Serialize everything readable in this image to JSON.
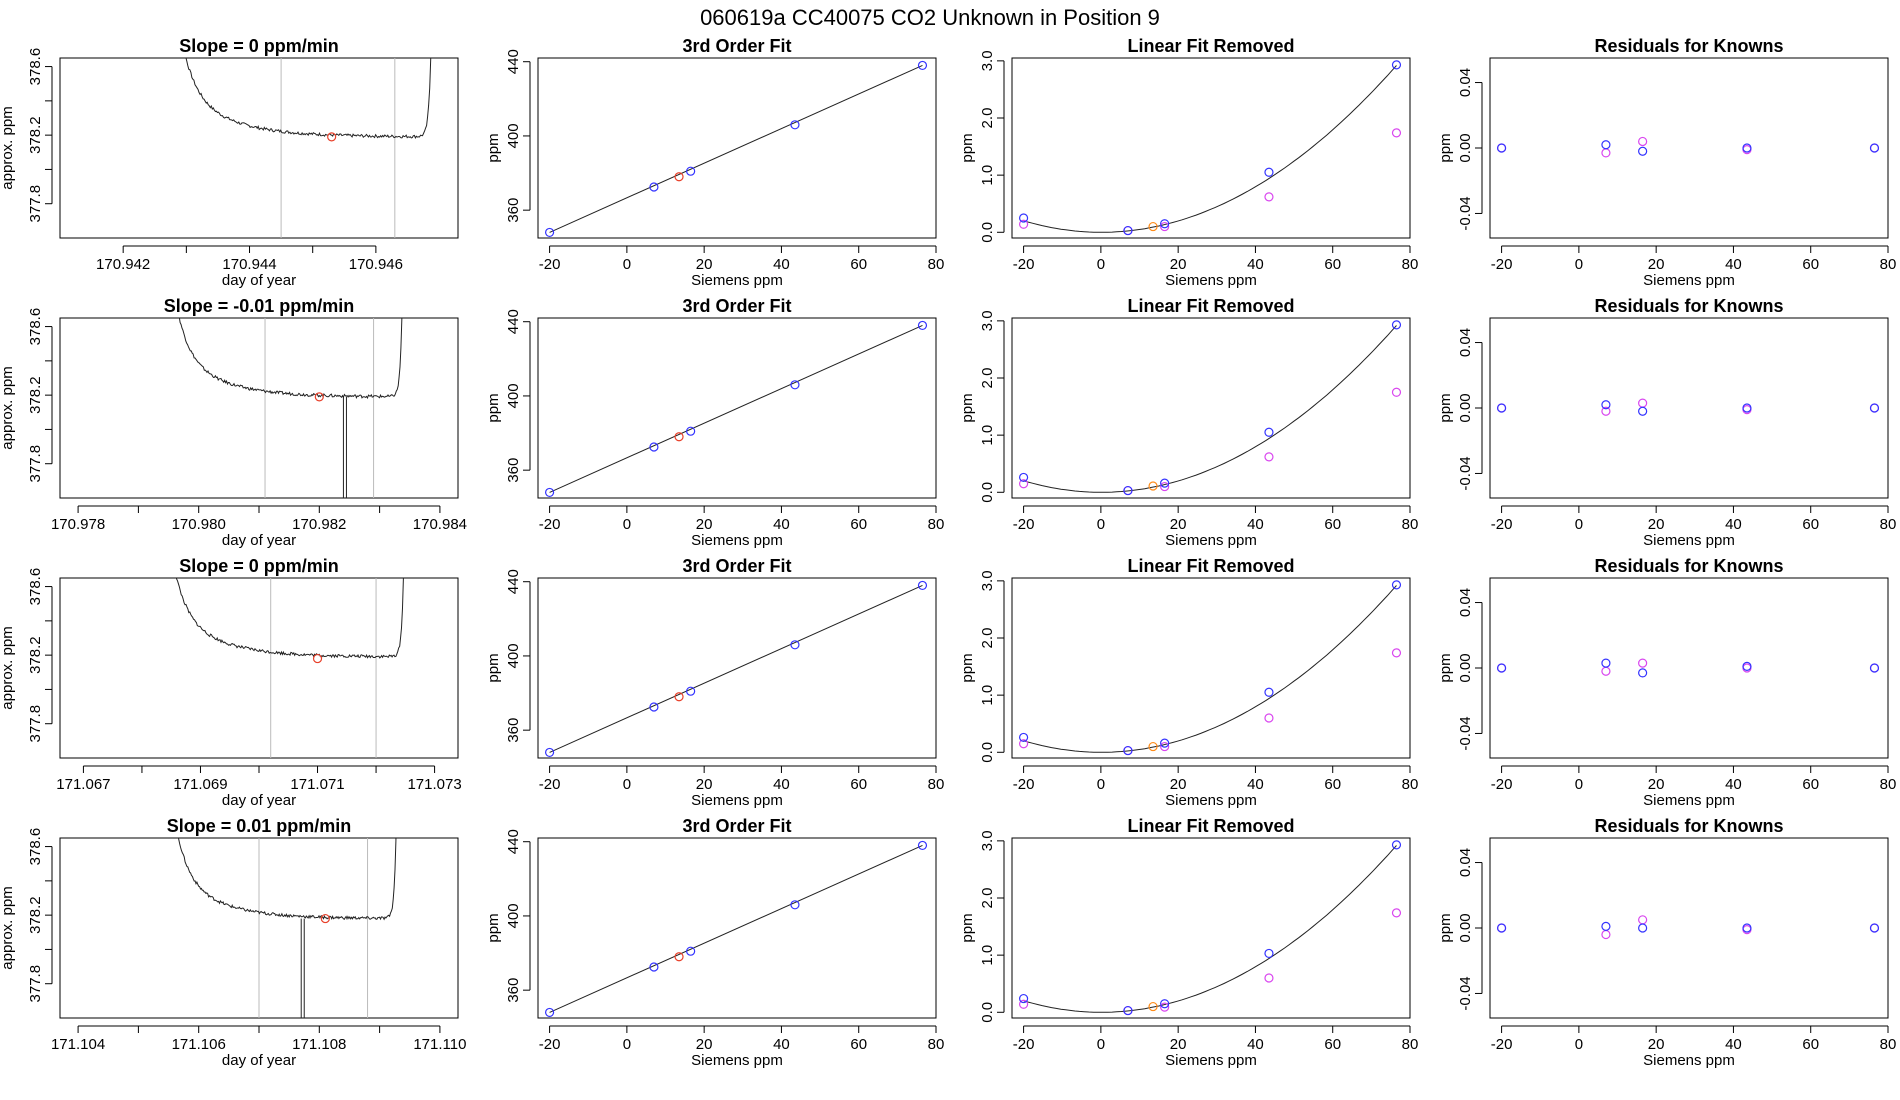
{
  "page_title": "060619a      CC40075    CO2 Unknown in Position  9",
  "colors": {
    "blue_points": "#3333ff",
    "magenta_points": "#d946ef",
    "red_points": "#e8402a",
    "orange_points": "#ff8c1a",
    "trace": "#222222",
    "vlines": "#bbbbbb"
  },
  "chart_data": [
    {
      "type": "line",
      "row": 0,
      "col": 0,
      "title": "Slope =  0  ppm/min",
      "xlabel": "day of year",
      "ylabel": "approx. ppm",
      "xlim": [
        170.941,
        170.9473
      ],
      "ylim": [
        377.6,
        378.65
      ],
      "xticks": [
        "170.942",
        "170.944",
        "170.946"
      ],
      "xtick_values": [
        170.942,
        170.944,
        170.946
      ],
      "yticks": [
        "377.8",
        "378.2",
        "378.6"
      ],
      "ytick_values": [
        377.8,
        378.2,
        378.6
      ],
      "vlines": [
        170.9445,
        170.9463
      ],
      "flat_level": 378.19,
      "rise_left": 170.9427,
      "rise_right": 170.9469,
      "drop_x": [],
      "marker": {
        "x": 170.9453,
        "y": 378.19
      }
    },
    {
      "type": "line",
      "row": 1,
      "col": 0,
      "title": "Slope =  -0.01  ppm/min",
      "xlabel": "day of year",
      "ylabel": "approx. ppm",
      "xlim": [
        170.9777,
        170.9843
      ],
      "ylim": [
        377.6,
        378.65
      ],
      "xticks": [
        "170.978",
        "170.980",
        "170.982",
        "170.984"
      ],
      "xtick_values": [
        170.978,
        170.98,
        170.982,
        170.984
      ],
      "yticks": [
        "377.8",
        "378.2",
        "378.6"
      ],
      "ytick_values": [
        377.8,
        378.2,
        378.6
      ],
      "vlines": [
        170.9811,
        170.9829
      ],
      "flat_level": 378.19,
      "rise_left": 170.9794,
      "rise_right": 170.9834,
      "drop_x": [
        170.9824,
        170.98245
      ],
      "marker": {
        "x": 170.982,
        "y": 378.19
      }
    },
    {
      "type": "line",
      "row": 2,
      "col": 0,
      "title": "Slope =  0  ppm/min",
      "xlabel": "day of year",
      "ylabel": "approx. ppm",
      "xlim": [
        171.0666,
        171.0734
      ],
      "ylim": [
        377.6,
        378.65
      ],
      "xticks": [
        "171.067",
        "171.069",
        "171.071",
        "171.073"
      ],
      "xtick_values": [
        171.067,
        171.069,
        171.071,
        171.073
      ],
      "yticks": [
        "377.8",
        "378.2",
        "378.6"
      ],
      "ytick_values": [
        377.8,
        378.2,
        378.6
      ],
      "vlines": [
        171.0702,
        171.072
      ],
      "flat_level": 378.19,
      "rise_left": 171.0683,
      "rise_right": 171.0725,
      "drop_x": [],
      "marker": {
        "x": 171.071,
        "y": 378.18
      }
    },
    {
      "type": "line",
      "row": 3,
      "col": 0,
      "title": "Slope =  0.01  ppm/min",
      "xlabel": "day of year",
      "ylabel": "approx. ppm",
      "xlim": [
        171.1037,
        171.1103
      ],
      "ylim": [
        377.6,
        378.65
      ],
      "xticks": [
        "171.104",
        "171.106",
        "171.108",
        "171.110"
      ],
      "xtick_values": [
        171.104,
        171.106,
        171.108,
        171.11
      ],
      "yticks": [
        "377.8",
        "378.2",
        "378.6"
      ],
      "ytick_values": [
        377.8,
        378.2,
        378.6
      ],
      "vlines": [
        171.107,
        171.1088
      ],
      "flat_level": 378.18,
      "rise_left": 171.1054,
      "rise_right": 171.1093,
      "drop_x": [
        171.1077,
        171.10775
      ],
      "marker": {
        "x": 171.1081,
        "y": 378.18
      }
    },
    {
      "type": "scatter",
      "row": 0,
      "col": 1,
      "title": "3rd Order Fit",
      "xlabel": "Siemens ppm",
      "ylabel": "ppm",
      "xlim": [
        -23,
        80
      ],
      "ylim": [
        345,
        442
      ],
      "xticks": [
        "-20",
        "0",
        "20",
        "40",
        "60",
        "80"
      ],
      "xtick_values": [
        -20,
        0,
        20,
        40,
        60,
        80
      ],
      "yticks": [
        "360",
        "400",
        "440"
      ],
      "ytick_values": [
        360,
        400,
        440
      ],
      "line": {
        "x": [
          -20,
          76.5
        ],
        "y": [
          348,
          438
        ]
      },
      "blue_points": {
        "x": [
          -20,
          7,
          16.5,
          43.5,
          76.5
        ],
        "y": [
          348,
          372.5,
          381,
          406,
          438
        ]
      },
      "red_points": {
        "x": [
          13.5
        ],
        "y": [
          378
        ]
      }
    },
    {
      "type": "scatter",
      "row": 1,
      "col": 1,
      "title": "3rd Order Fit",
      "xlabel": "Siemens ppm",
      "ylabel": "ppm",
      "xlim": [
        -23,
        80
      ],
      "ylim": [
        345,
        442
      ],
      "xticks": [
        "-20",
        "0",
        "20",
        "40",
        "60",
        "80"
      ],
      "xtick_values": [
        -20,
        0,
        20,
        40,
        60,
        80
      ],
      "yticks": [
        "360",
        "400",
        "440"
      ],
      "ytick_values": [
        360,
        400,
        440
      ],
      "line": {
        "x": [
          -20,
          76.5
        ],
        "y": [
          348,
          438
        ]
      },
      "blue_points": {
        "x": [
          -20,
          7,
          16.5,
          43.5,
          76.5
        ],
        "y": [
          348,
          372.5,
          381,
          406,
          438
        ]
      },
      "red_points": {
        "x": [
          13.5
        ],
        "y": [
          378
        ]
      }
    },
    {
      "type": "scatter",
      "row": 2,
      "col": 1,
      "title": "3rd Order Fit",
      "xlabel": "Siemens ppm",
      "ylabel": "ppm",
      "xlim": [
        -23,
        80
      ],
      "ylim": [
        345,
        442
      ],
      "xticks": [
        "-20",
        "0",
        "20",
        "40",
        "60",
        "80"
      ],
      "xtick_values": [
        -20,
        0,
        20,
        40,
        60,
        80
      ],
      "yticks": [
        "360",
        "400",
        "440"
      ],
      "ytick_values": [
        360,
        400,
        440
      ],
      "line": {
        "x": [
          -20,
          76.5
        ],
        "y": [
          348,
          438
        ]
      },
      "blue_points": {
        "x": [
          -20,
          7,
          16.5,
          43.5,
          76.5
        ],
        "y": [
          348,
          372.5,
          381,
          406,
          438
        ]
      },
      "red_points": {
        "x": [
          13.5
        ],
        "y": [
          378
        ]
      }
    },
    {
      "type": "scatter",
      "row": 3,
      "col": 1,
      "title": "3rd Order Fit",
      "xlabel": "Siemens ppm",
      "ylabel": "ppm",
      "xlim": [
        -23,
        80
      ],
      "ylim": [
        345,
        442
      ],
      "xticks": [
        "-20",
        "0",
        "20",
        "40",
        "60",
        "80"
      ],
      "xtick_values": [
        -20,
        0,
        20,
        40,
        60,
        80
      ],
      "yticks": [
        "360",
        "400",
        "440"
      ],
      "ytick_values": [
        360,
        400,
        440
      ],
      "line": {
        "x": [
          -20,
          76.5
        ],
        "y": [
          348,
          438
        ]
      },
      "blue_points": {
        "x": [
          -20,
          7,
          16.5,
          43.5,
          76.5
        ],
        "y": [
          348,
          372.5,
          381,
          406,
          438
        ]
      },
      "red_points": {
        "x": [
          13.5
        ],
        "y": [
          378
        ]
      }
    },
    {
      "type": "scatter",
      "row": 0,
      "col": 2,
      "title": "Linear Fit Removed",
      "xlabel": "Siemens ppm",
      "ylabel": "ppm",
      "xlim": [
        -23,
        80
      ],
      "ylim": [
        -0.1,
        3.05
      ],
      "xticks": [
        "-20",
        "0",
        "20",
        "40",
        "60",
        "80"
      ],
      "xtick_values": [
        -20,
        0,
        20,
        40,
        60,
        80
      ],
      "yticks": [
        "0.0",
        "1.0",
        "2.0",
        "3.0"
      ],
      "ytick_values": [
        0,
        1,
        2,
        3
      ],
      "curve": {
        "x_range": [
          -20,
          76.5
        ],
        "a": 0.0005,
        "b": -0.0001,
        "c": 0.0
      },
      "blue_points": {
        "x": [
          -20,
          7,
          16.5,
          43.5,
          76.5
        ],
        "y": [
          0.25,
          0.03,
          0.15,
          1.05,
          2.93
        ]
      },
      "magenta_points": {
        "x": [
          -20,
          7,
          16.5,
          43.5,
          76.5
        ],
        "y": [
          0.14,
          0.03,
          0.1,
          0.62,
          1.74
        ]
      },
      "orange_points": {
        "x": [
          13.5
        ],
        "y": [
          0.1
        ]
      }
    },
    {
      "type": "scatter",
      "row": 1,
      "col": 2,
      "title": "Linear Fit Removed",
      "xlabel": "Siemens ppm",
      "ylabel": "ppm",
      "xlim": [
        -23,
        80
      ],
      "ylim": [
        -0.1,
        3.05
      ],
      "xticks": [
        "-20",
        "0",
        "20",
        "40",
        "60",
        "80"
      ],
      "xtick_values": [
        -20,
        0,
        20,
        40,
        60,
        80
      ],
      "yticks": [
        "0.0",
        "1.0",
        "2.0",
        "3.0"
      ],
      "ytick_values": [
        0,
        1,
        2,
        3
      ],
      "curve": {
        "x_range": [
          -20,
          76.5
        ],
        "a": 0.0005,
        "b": -0.0001,
        "c": 0.0
      },
      "blue_points": {
        "x": [
          -20,
          7,
          16.5,
          43.5,
          76.5
        ],
        "y": [
          0.26,
          0.03,
          0.16,
          1.05,
          2.93
        ]
      },
      "magenta_points": {
        "x": [
          -20,
          7,
          16.5,
          43.5,
          76.5
        ],
        "y": [
          0.15,
          0.03,
          0.1,
          0.62,
          1.75
        ]
      },
      "orange_points": {
        "x": [
          13.5
        ],
        "y": [
          0.11
        ]
      }
    },
    {
      "type": "scatter",
      "row": 2,
      "col": 2,
      "title": "Linear Fit Removed",
      "xlabel": "Siemens ppm",
      "ylabel": "ppm",
      "xlim": [
        -23,
        80
      ],
      "ylim": [
        -0.1,
        3.05
      ],
      "xticks": [
        "-20",
        "0",
        "20",
        "40",
        "60",
        "80"
      ],
      "xtick_values": [
        -20,
        0,
        20,
        40,
        60,
        80
      ],
      "yticks": [
        "0.0",
        "1.0",
        "2.0",
        "3.0"
      ],
      "ytick_values": [
        0,
        1,
        2,
        3
      ],
      "curve": {
        "x_range": [
          -20,
          76.5
        ],
        "a": 0.0005,
        "b": -0.0001,
        "c": 0.0
      },
      "blue_points": {
        "x": [
          -20,
          7,
          16.5,
          43.5,
          76.5
        ],
        "y": [
          0.26,
          0.03,
          0.16,
          1.05,
          2.93
        ]
      },
      "magenta_points": {
        "x": [
          -20,
          7,
          16.5,
          43.5,
          76.5
        ],
        "y": [
          0.15,
          0.03,
          0.1,
          0.6,
          1.74
        ]
      },
      "orange_points": {
        "x": [
          13.5
        ],
        "y": [
          0.1
        ]
      }
    },
    {
      "type": "scatter",
      "row": 3,
      "col": 2,
      "title": "Linear Fit Removed",
      "xlabel": "Siemens ppm",
      "ylabel": "ppm",
      "xlim": [
        -23,
        80
      ],
      "ylim": [
        -0.1,
        3.05
      ],
      "xticks": [
        "-20",
        "0",
        "20",
        "40",
        "60",
        "80"
      ],
      "xtick_values": [
        -20,
        0,
        20,
        40,
        60,
        80
      ],
      "yticks": [
        "0.0",
        "1.0",
        "2.0",
        "3.0"
      ],
      "ytick_values": [
        0,
        1,
        2,
        3
      ],
      "curve": {
        "x_range": [
          -20,
          76.5
        ],
        "a": 0.0005,
        "b": -0.0001,
        "c": 0.0
      },
      "blue_points": {
        "x": [
          -20,
          7,
          16.5,
          43.5,
          76.5
        ],
        "y": [
          0.24,
          0.03,
          0.15,
          1.03,
          2.93
        ]
      },
      "magenta_points": {
        "x": [
          -20,
          7,
          16.5,
          43.5,
          76.5
        ],
        "y": [
          0.14,
          0.03,
          0.09,
          0.6,
          1.74
        ]
      },
      "orange_points": {
        "x": [
          13.5
        ],
        "y": [
          0.1
        ]
      }
    },
    {
      "type": "scatter",
      "row": 0,
      "col": 3,
      "title": "Residuals for Knowns",
      "xlabel": "Siemens ppm",
      "ylabel": "ppm",
      "xlim": [
        -23,
        80
      ],
      "ylim": [
        -0.055,
        0.055
      ],
      "xticks": [
        "-20",
        "0",
        "20",
        "40",
        "60",
        "80"
      ],
      "xtick_values": [
        -20,
        0,
        20,
        40,
        60,
        80
      ],
      "yticks": [
        "-0.04",
        "0.00",
        "0.04"
      ],
      "ytick_values": [
        -0.04,
        0,
        0.04
      ],
      "blue_points": {
        "x": [
          -20,
          7,
          16.5,
          43.5,
          76.5
        ],
        "y": [
          0.0,
          0.002,
          -0.002,
          0.0,
          0.0
        ]
      },
      "magenta_points": {
        "x": [
          -20,
          7,
          16.5,
          43.5,
          76.5
        ],
        "y": [
          0.0,
          -0.003,
          0.004,
          -0.001,
          0.0
        ]
      }
    },
    {
      "type": "scatter",
      "row": 1,
      "col": 3,
      "title": "Residuals for Knowns",
      "xlabel": "Siemens ppm",
      "ylabel": "ppm",
      "xlim": [
        -23,
        80
      ],
      "ylim": [
        -0.055,
        0.055
      ],
      "xticks": [
        "-20",
        "0",
        "20",
        "40",
        "60",
        "80"
      ],
      "xtick_values": [
        -20,
        0,
        20,
        40,
        60,
        80
      ],
      "yticks": [
        "-0.04",
        "0.00",
        "0.04"
      ],
      "ytick_values": [
        -0.04,
        0,
        0.04
      ],
      "blue_points": {
        "x": [
          -20,
          7,
          16.5,
          43.5,
          76.5
        ],
        "y": [
          0.0,
          0.002,
          -0.002,
          0.0,
          0.0
        ]
      },
      "magenta_points": {
        "x": [
          -20,
          7,
          16.5,
          43.5,
          76.5
        ],
        "y": [
          0.0,
          -0.002,
          0.003,
          -0.001,
          0.0
        ]
      }
    },
    {
      "type": "scatter",
      "row": 2,
      "col": 3,
      "title": "Residuals for Knowns",
      "xlabel": "Siemens ppm",
      "ylabel": "ppm",
      "xlim": [
        -23,
        80
      ],
      "ylim": [
        -0.055,
        0.055
      ],
      "xticks": [
        "-20",
        "0",
        "20",
        "40",
        "60",
        "80"
      ],
      "xtick_values": [
        -20,
        0,
        20,
        40,
        60,
        80
      ],
      "yticks": [
        "-0.04",
        "0.00",
        "0.04"
      ],
      "ytick_values": [
        -0.04,
        0,
        0.04
      ],
      "blue_points": {
        "x": [
          -20,
          7,
          16.5,
          43.5,
          76.5
        ],
        "y": [
          0.0,
          0.003,
          -0.003,
          0.001,
          0.0
        ]
      },
      "magenta_points": {
        "x": [
          -20,
          7,
          16.5,
          43.5,
          76.5
        ],
        "y": [
          0.0,
          -0.002,
          0.003,
          0.0,
          0.0
        ]
      }
    },
    {
      "type": "scatter",
      "row": 3,
      "col": 3,
      "title": "Residuals for Knowns",
      "xlabel": "Siemens ppm",
      "ylabel": "ppm",
      "xlim": [
        -23,
        80
      ],
      "ylim": [
        -0.055,
        0.055
      ],
      "xticks": [
        "-20",
        "0",
        "20",
        "40",
        "60",
        "80"
      ],
      "xtick_values": [
        -20,
        0,
        20,
        40,
        60,
        80
      ],
      "yticks": [
        "-0.04",
        "0.00",
        "0.04"
      ],
      "ytick_values": [
        -0.04,
        0,
        0.04
      ],
      "blue_points": {
        "x": [
          -20,
          7,
          16.5,
          43.5,
          76.5
        ],
        "y": [
          0.0,
          0.001,
          0.0,
          0.0,
          0.0
        ]
      },
      "magenta_points": {
        "x": [
          -20,
          7,
          16.5,
          43.5,
          76.5
        ],
        "y": [
          0.0,
          -0.004,
          0.005,
          -0.001,
          0.0
        ]
      }
    }
  ]
}
